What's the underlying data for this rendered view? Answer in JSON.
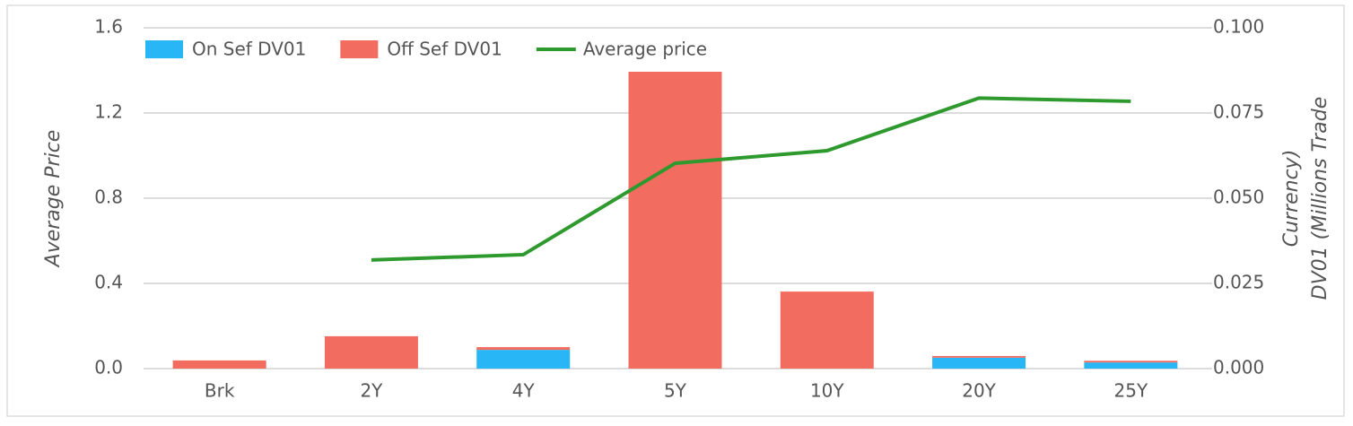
{
  "chart_data": {
    "type": "bar",
    "categories": [
      "Brk",
      "2Y",
      "4Y",
      "5Y",
      "10Y",
      "20Y",
      "25Y"
    ],
    "series": [
      {
        "name": "On Sef DV01",
        "color": "#29b6f6",
        "axis": "y2",
        "values": [
          0,
          0,
          0.0055,
          0,
          0,
          0.0032,
          0.0018
        ]
      },
      {
        "name": "Off Sef DV01",
        "color": "#f26c5f",
        "axis": "y2",
        "values": [
          0.0024,
          0.0095,
          0.0008,
          0.0871,
          0.0226,
          0.0005,
          0.0005
        ]
      },
      {
        "name": "Average price",
        "color": "#2e9a2e",
        "type": "line",
        "values": [
          null,
          0.51,
          0.535,
          0.964,
          1.023,
          1.27,
          1.255
        ]
      }
    ],
    "ylabel": "Average Price",
    "y2label": [
      "Currency)",
      "DV01 (Millions Trade"
    ],
    "ylim": [
      0,
      1.6
    ],
    "yticks": [
      {
        "value": 0,
        "label": "0.0"
      },
      0.4,
      0.8,
      1.2,
      1.6
    ],
    "y2lim": [
      0,
      0.1
    ],
    "y2ticks": [
      {
        "value": 0,
        "label": "0.000"
      },
      {
        "value": 0.025,
        "label": "0.025"
      },
      {
        "value": 0.05,
        "label": "0.050"
      },
      {
        "value": 0.075,
        "label": "0.075"
      },
      {
        "value": 0.1,
        "label": "0.100"
      }
    ],
    "stacked": true,
    "grid": true,
    "legend": "top"
  }
}
